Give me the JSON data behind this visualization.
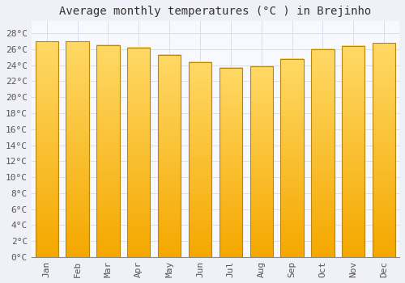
{
  "title": "Average monthly temperatures (°C ) in Brejinho",
  "months": [
    "Jan",
    "Feb",
    "Mar",
    "Apr",
    "May",
    "Jun",
    "Jul",
    "Aug",
    "Sep",
    "Oct",
    "Nov",
    "Dec"
  ],
  "values": [
    27.0,
    27.0,
    26.5,
    26.2,
    25.3,
    24.4,
    23.7,
    23.9,
    24.8,
    26.0,
    26.4,
    26.8
  ],
  "bar_color_bottom": "#F5A800",
  "bar_color_top": "#FFD966",
  "bar_edge_color": "#B8860B",
  "background_color": "#F0F0F8",
  "plot_bg_color": "#F8F8FF",
  "grid_color": "#DDDDEE",
  "ytick_labels": [
    "0°C",
    "2°C",
    "4°C",
    "6°C",
    "8°C",
    "10°C",
    "12°C",
    "14°C",
    "16°C",
    "18°C",
    "20°C",
    "22°C",
    "24°C",
    "26°C",
    "28°C"
  ],
  "ytick_values": [
    0,
    2,
    4,
    6,
    8,
    10,
    12,
    14,
    16,
    18,
    20,
    22,
    24,
    26,
    28
  ],
  "ylim": [
    0,
    29.5
  ],
  "title_fontsize": 10,
  "tick_fontsize": 8,
  "bar_width": 0.75,
  "figsize": [
    5.0,
    3.5
  ],
  "dpi": 100
}
